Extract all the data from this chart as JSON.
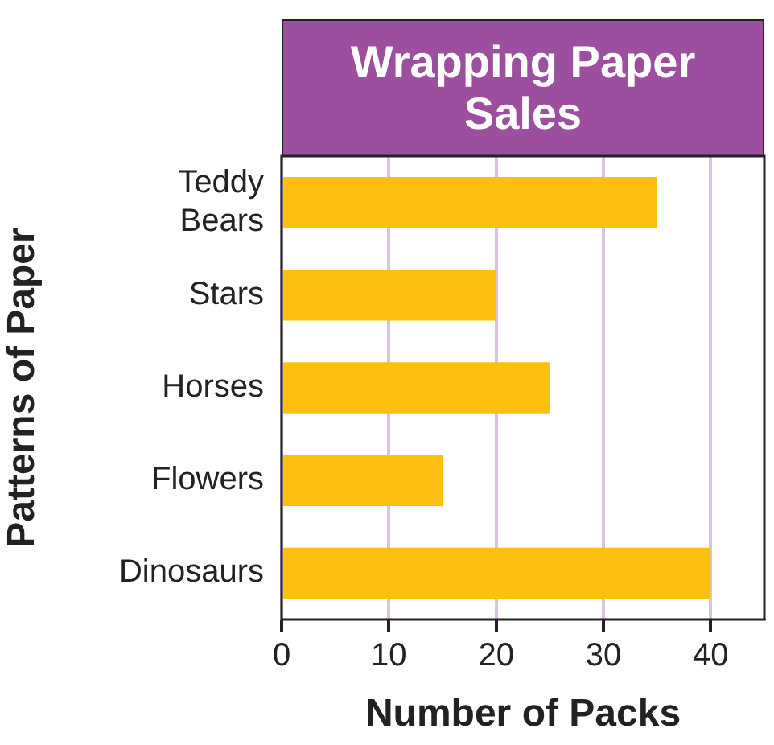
{
  "chart_data": {
    "type": "bar",
    "orientation": "horizontal",
    "title": "Wrapping Paper Sales",
    "xlabel": "Number of Packs",
    "ylabel": "Patterns of Paper",
    "categories": [
      "Teddy Bears",
      "Stars",
      "Horses",
      "Flowers",
      "Dinosaurs"
    ],
    "values": [
      35,
      20,
      25,
      15,
      40
    ],
    "color": "#fdc010",
    "xlim": [
      0,
      45
    ],
    "xticks": [
      0,
      10,
      20,
      30,
      40
    ],
    "grid": "x",
    "legend": false
  }
}
